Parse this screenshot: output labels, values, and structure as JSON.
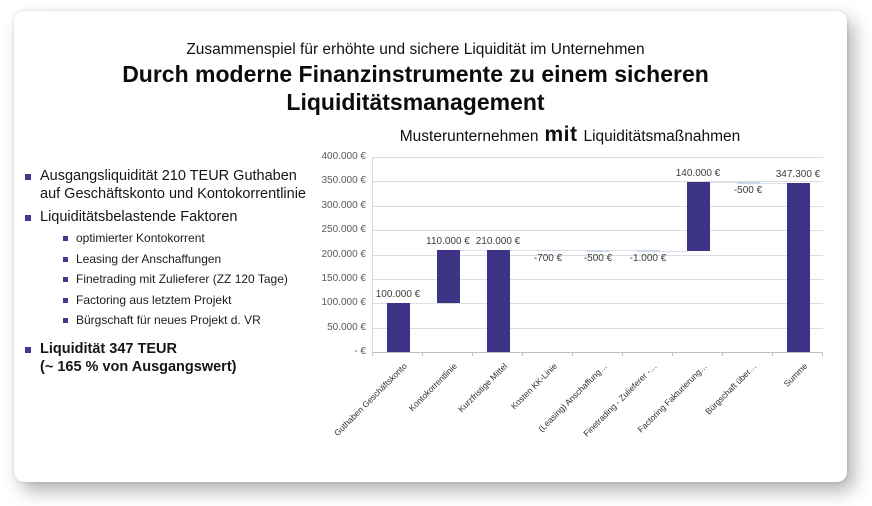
{
  "slide": {
    "kicker": "Zusammenspiel für erhöhte und sichere Liquidität im Unternehmen",
    "title_line1": "Durch moderne Finanzinstrumente zu einem sicheren",
    "title_line2": "Liquiditätsmanagement"
  },
  "left_panel": {
    "bullet1": "Ausgangsliquidität 210 TEUR Guthaben auf Geschäftskonto und Kontokorrentlinie",
    "bullet2": "Liquiditätsbelastende Faktoren",
    "sub_bullets": [
      "optimierter Kontokorrent",
      "Leasing der Anschaffungen",
      "Finetrading mit Zulieferer (ZZ 120 Tage)",
      "Factoring aus letztem Projekt",
      "Bürgschaft für neues Projekt d. VR"
    ],
    "bullet3_line1": "Liquidität 347 TEUR",
    "bullet3_line2": "(~ 165 % von Ausgangswert)"
  },
  "chart_title": {
    "prefix": "Musterunternehmen",
    "emphasis": "mit",
    "suffix": "Liquiditätsmaßnahmen"
  },
  "chart_data": {
    "type": "bar",
    "subtype": "waterfall",
    "title": "Musterunternehmen mit Liquiditätsmaßnahmen",
    "categories": [
      "Guthaben Geschäftskonto",
      "Kontokorrentlinie",
      "Kurzfristige Mittel",
      "Kosten KK-Linie",
      "(Leasing) Anschaffung…",
      "Finetrading - Zulieferer -…",
      "Factoring Fakturierung…",
      "Bürgschaft über…",
      "Summe"
    ],
    "values": [
      100000,
      110000,
      210000,
      -700,
      -500,
      -1000,
      140000,
      -500,
      347300
    ],
    "is_total": [
      false,
      false,
      true,
      false,
      false,
      false,
      false,
      false,
      true
    ],
    "data_labels": [
      "100.000 €",
      "110.000 €",
      "210.000 €",
      "-700 €",
      "-500 €",
      "-1.000 €",
      "140.000 €",
      "-500 €",
      "347.300 €"
    ],
    "y_ticks": [
      {
        "label": "400.000 €",
        "value": 400000
      },
      {
        "label": "350.000 €",
        "value": 350000
      },
      {
        "label": "300.000 €",
        "value": 300000
      },
      {
        "label": "250.000 €",
        "value": 250000
      },
      {
        "label": "200.000 €",
        "value": 200000
      },
      {
        "label": "150.000 €",
        "value": 150000
      },
      {
        "label": "100.000 €",
        "value": 100000
      },
      {
        "label": "50.000 €",
        "value": 50000
      },
      {
        "label": "- €",
        "value": 0
      }
    ],
    "ylim": [
      0,
      400000
    ],
    "grid": true,
    "legend": "none",
    "colors": {
      "bar": "#3d3487",
      "tiny_bar": "#ccd9ea",
      "connector": "#d9e2ee",
      "grid": "#dcdcdc",
      "axis": "#bfbfbf",
      "bullet_square": "#45398f"
    }
  }
}
